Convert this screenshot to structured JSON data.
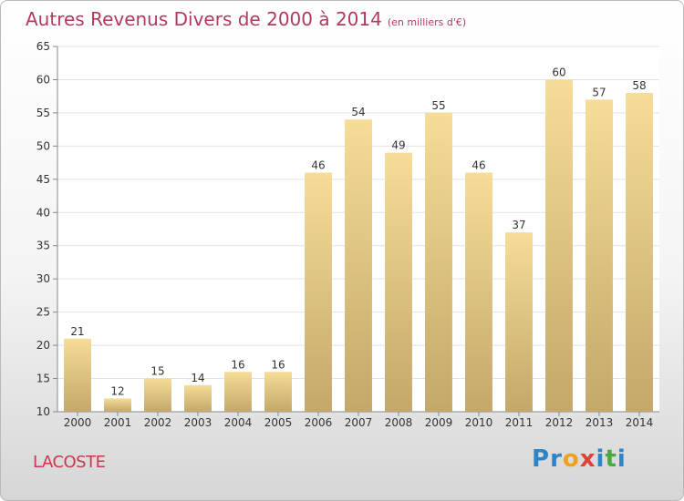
{
  "title": "Autres Revenus Divers de 2000 à 2014",
  "unit_label": "(en milliers d'€)",
  "commune": "LACOSTE",
  "brand": {
    "text": "Proxiti",
    "letters": [
      {
        "ch": "P",
        "color": "#2f84c6"
      },
      {
        "ch": "r",
        "color": "#2f84c6"
      },
      {
        "ch": "o",
        "color": "#f0a020"
      },
      {
        "ch": "x",
        "color": "#e0403a"
      },
      {
        "ch": "i",
        "color": "#2f84c6"
      },
      {
        "ch": "t",
        "color": "#4aa93e"
      },
      {
        "ch": "i",
        "color": "#2f84c6"
      }
    ]
  },
  "colors": {
    "title": "#b23a5c",
    "commune": "#c8384f",
    "bar_top": "#f6dc97",
    "bar_bottom": "#c3a86a",
    "grid": "#e2e2e2",
    "axis_text": "#333333"
  },
  "chart_data": {
    "type": "bar",
    "categories": [
      "2000",
      "2001",
      "2002",
      "2003",
      "2004",
      "2005",
      "2006",
      "2007",
      "2008",
      "2009",
      "2010",
      "2011",
      "2012",
      "2013",
      "2014"
    ],
    "values": [
      21,
      12,
      15,
      14,
      16,
      16,
      46,
      54,
      49,
      55,
      46,
      37,
      60,
      57,
      58
    ],
    "ylim": [
      10,
      65
    ],
    "yticks": [
      10,
      15,
      20,
      25,
      30,
      35,
      40,
      45,
      50,
      55,
      60,
      65
    ],
    "grid": true,
    "data_labels": true
  }
}
